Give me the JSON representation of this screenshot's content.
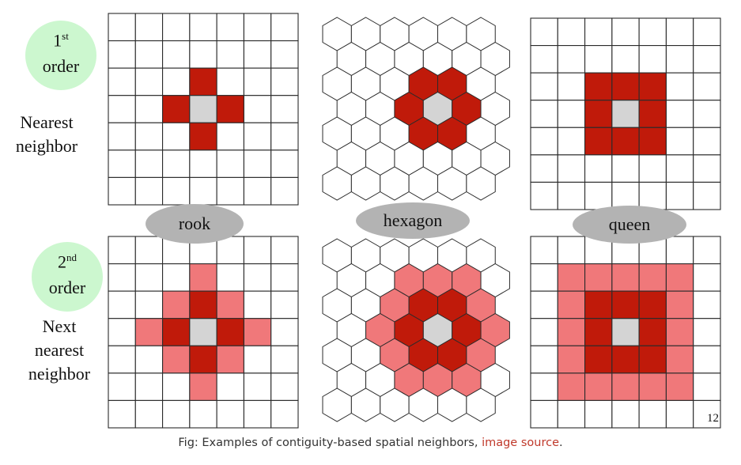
{
  "colors": {
    "order_ellipse": "#ccf7cf",
    "pill": "#b3b3b3",
    "center": "#d4d4d4",
    "first_order": "#c01a0a",
    "second_order": "#f0787a",
    "line": "#2b2b2b",
    "link": "#c0392b"
  },
  "orders": {
    "first": {
      "number": "1",
      "suffix": "st",
      "word": "order"
    },
    "second": {
      "number": "2",
      "suffix": "nd",
      "word": "order"
    }
  },
  "side_labels": {
    "first": [
      "Nearest",
      "neighbor"
    ],
    "second": [
      "Next",
      "nearest",
      "neighbor"
    ]
  },
  "panels": {
    "rook": "rook",
    "hexagon": "hexagon",
    "queen": "queen"
  },
  "page_number": "12",
  "caption": {
    "text": "Fig: Examples of contiguity-based spatial neighbors, ",
    "link": "image source",
    "end": "."
  }
}
